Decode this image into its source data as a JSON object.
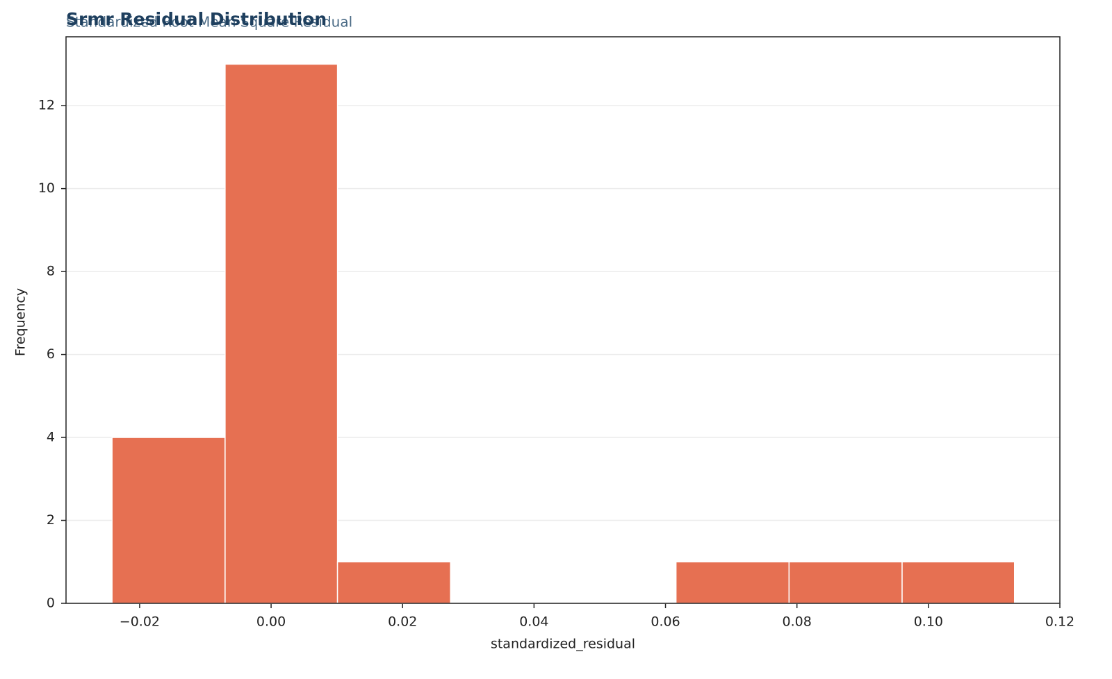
{
  "chart_data": {
    "type": "histogram",
    "title": "Srmr Residual Distribution",
    "subtitle": "Standardized Root Mean Square Residual",
    "x_label": "standardized_residual",
    "y_label": "Frequency",
    "bins": [
      -0.0242,
      -0.007,
      0.0101,
      0.0273,
      0.0445,
      0.0616,
      0.0788,
      0.096,
      0.1131
    ],
    "values": [
      4,
      13,
      1,
      0,
      0,
      1,
      1,
      1
    ],
    "color": "#e67052",
    "xlim": [
      -0.0312,
      0.12
    ],
    "ylim": [
      0,
      13.66
    ],
    "xticks": [
      {
        "value": -0.02,
        "label": "−0.02"
      },
      {
        "value": 0,
        "label": "0.00"
      },
      0.02,
      0.04,
      0.06,
      0.08,
      {
        "value": 0.1,
        "label": "0.10"
      },
      0.12
    ],
    "yticks": [
      0,
      2,
      4,
      6,
      8,
      10,
      12
    ],
    "grid": true
  }
}
